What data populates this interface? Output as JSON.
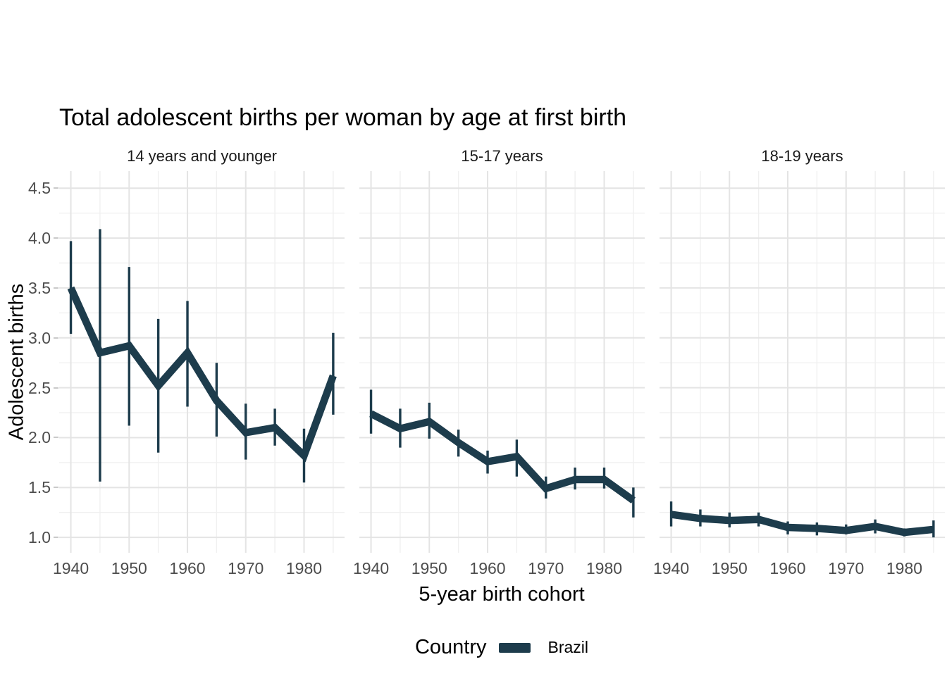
{
  "chart_data": {
    "type": "line",
    "title": "Total adolescent births per woman by age at first birth",
    "xlabel": "5-year birth cohort",
    "ylabel": "Adolescent births",
    "x": [
      1940,
      1945,
      1950,
      1955,
      1960,
      1965,
      1970,
      1975,
      1980,
      1985
    ],
    "x_major_ticks": [
      1940,
      1950,
      1960,
      1970,
      1980
    ],
    "x_minor_ticks": [
      1945,
      1955,
      1965,
      1975,
      1985
    ],
    "x_tick_labels": [
      "1940",
      "1950",
      "1960",
      "1970",
      "1980"
    ],
    "y_major_ticks": [
      1.0,
      1.5,
      2.0,
      2.5,
      3.0,
      3.5,
      4.0,
      4.5
    ],
    "y_minor_ticks": [
      1.25,
      1.75,
      2.25,
      2.75,
      3.25,
      3.75,
      4.25
    ],
    "y_tick_labels": [
      "1.0",
      "1.5",
      "2.0",
      "2.5",
      "3.0",
      "3.5",
      "4.0",
      "4.5"
    ],
    "xlim": [
      1938.0,
      1986.95
    ],
    "ylim": [
      0.846,
      4.671
    ],
    "grid": "on",
    "legend_position": "bottom",
    "legend": {
      "title": "Country",
      "entries": [
        {
          "label": "Brazil",
          "color": "#1d3c4c"
        }
      ]
    },
    "facets": [
      {
        "label": "14 years and younger",
        "series": [
          {
            "name": "Brazil",
            "estimate": [
              3.5,
              2.85,
              2.92,
              2.52,
              2.85,
              2.37,
              2.05,
              2.1,
              1.82,
              2.62
            ],
            "ci_low": [
              3.04,
              1.56,
              2.12,
              1.85,
              2.31,
              2.01,
              1.78,
              1.92,
              1.55,
              2.23
            ],
            "ci_high": [
              3.97,
              4.09,
              3.71,
              3.19,
              3.37,
              2.75,
              2.34,
              2.29,
              2.09,
              3.05
            ]
          }
        ]
      },
      {
        "label": "15-17 years",
        "series": [
          {
            "name": "Brazil",
            "estimate": [
              2.24,
              2.09,
              2.16,
              1.95,
              1.76,
              1.81,
              1.49,
              1.58,
              1.58,
              1.37
            ],
            "ci_low": [
              2.04,
              1.9,
              1.99,
              1.81,
              1.64,
              1.61,
              1.39,
              1.48,
              1.49,
              1.2
            ],
            "ci_high": [
              2.48,
              2.29,
              2.35,
              2.08,
              1.87,
              1.98,
              1.61,
              1.7,
              1.7,
              1.5
            ]
          }
        ]
      },
      {
        "label": "18-19 years",
        "series": [
          {
            "name": "Brazil",
            "estimate": [
              1.23,
              1.19,
              1.17,
              1.18,
              1.1,
              1.09,
              1.07,
              1.11,
              1.05,
              1.08
            ],
            "ci_low": [
              1.11,
              1.11,
              1.1,
              1.11,
              1.03,
              1.02,
              1.03,
              1.04,
              1.01,
              1.0
            ],
            "ci_high": [
              1.36,
              1.28,
              1.25,
              1.25,
              1.16,
              1.15,
              1.13,
              1.18,
              1.09,
              1.17
            ]
          }
        ]
      }
    ],
    "colors": {
      "line": "#1d3c4c",
      "grid_major": "#e4e4e4",
      "grid_minor": "#f0f0f0",
      "axis_text": "#4d4d4d",
      "tick_mark": "#c9c9c9",
      "title_text": "#000000",
      "strip_text": "#1a1a1a",
      "background": "#ffffff"
    }
  }
}
